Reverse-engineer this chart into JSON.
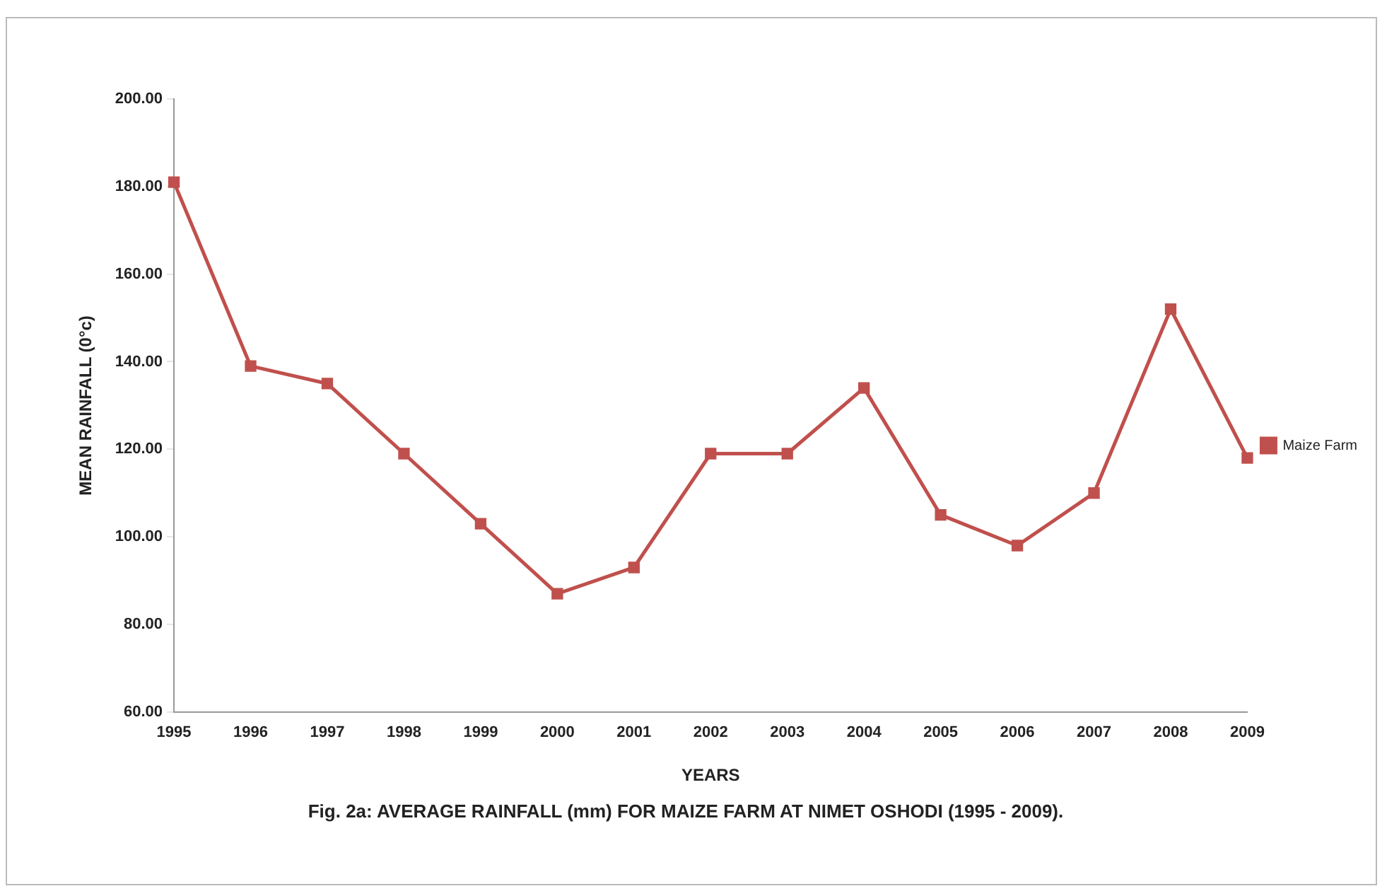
{
  "chart_data": {
    "type": "line",
    "title": "Fig. 2a: AVERAGE RAINFALL (mm) FOR MAIZE FARM AT NIMET OSHODI (1995 - 2009).",
    "xlabel": "YEARS",
    "ylabel": "MEAN RAINFALL (0°c)",
    "categories": [
      "1995",
      "1996",
      "1997",
      "1998",
      "1999",
      "2000",
      "2001",
      "2002",
      "2003",
      "2004",
      "2005",
      "2006",
      "2007",
      "2008",
      "2009"
    ],
    "series": [
      {
        "name": "Maize Farm",
        "color": "#c0504d",
        "values": [
          181,
          139,
          135,
          119,
          103,
          87,
          93,
          119,
          119,
          134,
          105,
          98,
          110,
          152,
          118
        ]
      }
    ],
    "ylim": [
      60,
      200
    ],
    "yticks": [
      {
        "value": 60,
        "label": "60.00"
      },
      {
        "value": 80,
        "label": "80.00"
      },
      {
        "value": 100,
        "label": "100.00"
      },
      {
        "value": 120,
        "label": "120.00"
      },
      {
        "value": 140,
        "label": "140.00"
      },
      {
        "value": 160,
        "label": "160.00"
      },
      {
        "value": 180,
        "label": "180.00"
      },
      {
        "value": 200,
        "label": "200.00"
      }
    ],
    "grid": false,
    "legend": "right",
    "marker": "square",
    "line_style": "solid"
  }
}
